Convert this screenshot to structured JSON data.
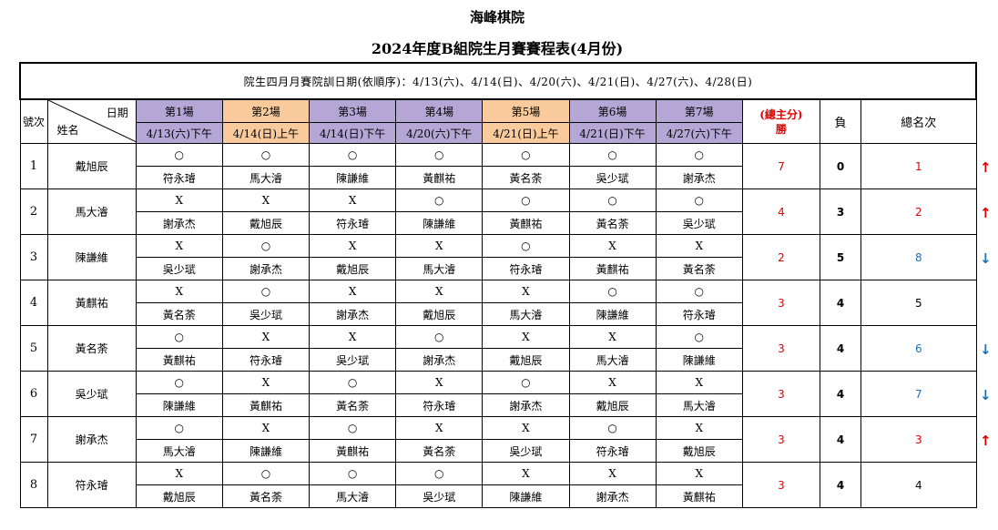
{
  "title": "海峰棋院",
  "subtitle": "2024年度B組院生月賽賽程表(4月份)",
  "notice": "院生四月月賽院訓日期(依順序)：4/13(六)、4/14(日)、4/20(六)、4/21(日)、4/27(六)、4/28(日)",
  "headers": {
    "rank_no": "號次",
    "date_label": "日期",
    "name_label": "姓名",
    "wins_line1": "(總主分)",
    "wins_line2": "勝",
    "losses": "負",
    "total_rank": "總名次"
  },
  "rounds": [
    {
      "label": "第1場",
      "date": "4/13(六)下午",
      "color": "#b4a7d6"
    },
    {
      "label": "第2場",
      "date": "4/14(日)上午",
      "color": "#f9cb9c"
    },
    {
      "label": "第3場",
      "date": "4/14(日)下午",
      "color": "#b4a7d6"
    },
    {
      "label": "第4場",
      "date": "4/20(六)下午",
      "color": "#b4a7d6"
    },
    {
      "label": "第5場",
      "date": "4/21(日)上午",
      "color": "#f9cb9c"
    },
    {
      "label": "第6場",
      "date": "4/21(日)下午",
      "color": "#b4a7d6"
    },
    {
      "label": "第7場",
      "date": "4/27(六)下午",
      "color": "#b4a7d6"
    }
  ],
  "players": [
    {
      "no": "1",
      "name": "戴旭辰",
      "results": [
        "○",
        "○",
        "○",
        "○",
        "○",
        "○",
        "○"
      ],
      "opponents": [
        "符永璿",
        "馬大濬",
        "陳謙維",
        "黃麒祐",
        "黃名荼",
        "吳少珷",
        "謝承杰"
      ],
      "wins": "7",
      "losses": "0",
      "rank": "1",
      "rank_color": "#e00000",
      "trend": "↑",
      "trend_color": "#e00000"
    },
    {
      "no": "2",
      "name": "馬大濬",
      "results": [
        "X",
        "X",
        "X",
        "○",
        "○",
        "○",
        "○"
      ],
      "opponents": [
        "謝承杰",
        "戴旭辰",
        "符永璿",
        "陳謙維",
        "黃麒祐",
        "黃名荼",
        "吳少珷"
      ],
      "wins": "4",
      "losses": "3",
      "rank": "2",
      "rank_color": "#e00000",
      "trend": "↑",
      "trend_color": "#e00000"
    },
    {
      "no": "3",
      "name": "陳謙維",
      "results": [
        "X",
        "○",
        "X",
        "X",
        "○",
        "X",
        "X"
      ],
      "opponents": [
        "吳少珷",
        "謝承杰",
        "戴旭辰",
        "馬大濬",
        "符永璿",
        "黃麒祐",
        "黃名荼"
      ],
      "wins": "2",
      "losses": "5",
      "rank": "8",
      "rank_color": "#1f6fb5",
      "trend": "↓",
      "trend_color": "#1f6fb5"
    },
    {
      "no": "4",
      "name": "黃麒祐",
      "results": [
        "X",
        "○",
        "X",
        "X",
        "X",
        "○",
        "○"
      ],
      "opponents": [
        "黃名荼",
        "吳少珷",
        "謝承杰",
        "戴旭辰",
        "馬大濬",
        "陳謙維",
        "符永璿"
      ],
      "wins": "3",
      "losses": "4",
      "rank": "5",
      "rank_color": "#000000",
      "trend": "",
      "trend_color": "#000000"
    },
    {
      "no": "5",
      "name": "黃名荼",
      "results": [
        "○",
        "X",
        "X",
        "○",
        "X",
        "X",
        "○"
      ],
      "opponents": [
        "黃麒祐",
        "符永璿",
        "吳少珷",
        "謝承杰",
        "戴旭辰",
        "馬大濬",
        "陳謙維"
      ],
      "wins": "3",
      "losses": "4",
      "rank": "6",
      "rank_color": "#1f6fb5",
      "trend": "↓",
      "trend_color": "#1f6fb5"
    },
    {
      "no": "6",
      "name": "吳少珷",
      "results": [
        "○",
        "X",
        "○",
        "X",
        "○",
        "X",
        "X"
      ],
      "opponents": [
        "陳謙維",
        "黃麒祐",
        "黃名荼",
        "符永璿",
        "謝承杰",
        "戴旭辰",
        "馬大濬"
      ],
      "wins": "3",
      "losses": "4",
      "rank": "7",
      "rank_color": "#1f6fb5",
      "trend": "↓",
      "trend_color": "#1f6fb5"
    },
    {
      "no": "7",
      "name": "謝承杰",
      "results": [
        "○",
        "X",
        "○",
        "X",
        "X",
        "○",
        "X"
      ],
      "opponents": [
        "馬大濬",
        "陳謙維",
        "黃麒祐",
        "黃名荼",
        "吳少珷",
        "符永璿",
        "戴旭辰"
      ],
      "wins": "3",
      "losses": "4",
      "rank": "3",
      "rank_color": "#e00000",
      "trend": "↑",
      "trend_color": "#e00000"
    },
    {
      "no": "8",
      "name": "符永璿",
      "results": [
        "X",
        "○",
        "○",
        "○",
        "X",
        "X",
        "X"
      ],
      "opponents": [
        "戴旭辰",
        "黃名荼",
        "馬大濬",
        "吳少珷",
        "陳謙維",
        "謝承杰",
        "黃麒祐"
      ],
      "wins": "3",
      "losses": "4",
      "rank": "4",
      "rank_color": "#000000",
      "trend": "",
      "trend_color": "#000000"
    }
  ]
}
